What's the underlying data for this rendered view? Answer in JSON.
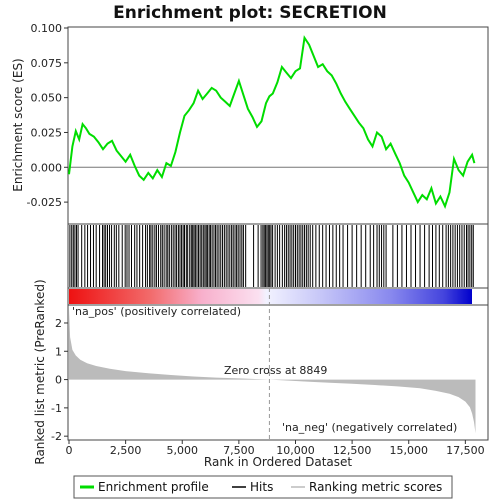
{
  "chart_data": {
    "type": "line",
    "title": "Enrichment plot: SECRETION",
    "xlabel": "Rank in Ordered Dataset",
    "ylabel_top": "Enrichment score (ES)",
    "ylabel_bottom": "Ranked list metric (PreRanked)",
    "xlim": [
      0,
      18500
    ],
    "ylim_es": [
      -0.04,
      0.1
    ],
    "ylim_metric": [
      -2.1,
      2.6
    ],
    "x_ticks": [
      0,
      2500,
      5000,
      7500,
      10000,
      12500,
      15000,
      17500
    ],
    "x_tick_labels": [
      "0",
      "2,500",
      "5,000",
      "7,500",
      "10,000",
      "12,500",
      "15,000",
      "17,500"
    ],
    "es_ticks": [
      -0.025,
      0,
      0.025,
      0.05,
      0.075,
      0.1
    ],
    "es_tick_labels": [
      "-0.025",
      "0.000",
      "0.025",
      "0.050",
      "0.075",
      "0.100"
    ],
    "metric_ticks": [
      -2,
      -1,
      0,
      1,
      2
    ],
    "metric_tick_labels": [
      "-2",
      "-1",
      "0",
      "1",
      "2"
    ],
    "es_profile": {
      "name": "Enrichment profile",
      "color": "#00dd00",
      "x": [
        0,
        150,
        300,
        450,
        600,
        750,
        900,
        1100,
        1300,
        1500,
        1700,
        1900,
        2100,
        2300,
        2500,
        2700,
        2900,
        3100,
        3300,
        3500,
        3700,
        3900,
        4100,
        4300,
        4500,
        4700,
        4900,
        5100,
        5300,
        5500,
        5700,
        5900,
        6100,
        6300,
        6500,
        6700,
        6900,
        7100,
        7300,
        7500,
        7700,
        7900,
        8100,
        8300,
        8500,
        8700,
        8849,
        9000,
        9200,
        9400,
        9600,
        9800,
        10000,
        10200,
        10400,
        10600,
        10800,
        11000,
        11200,
        11400,
        11600,
        11800,
        12000,
        12200,
        12400,
        12600,
        12800,
        13000,
        13200,
        13400,
        13600,
        13800,
        14000,
        14200,
        14400,
        14600,
        14800,
        15000,
        15200,
        15400,
        15600,
        15800,
        16000,
        16200,
        16400,
        16600,
        16800,
        17000,
        17200,
        17400,
        17600,
        17800,
        17900
      ],
      "y": [
        -0.005,
        0.015,
        0.026,
        0.02,
        0.031,
        0.028,
        0.024,
        0.022,
        0.018,
        0.013,
        0.017,
        0.019,
        0.012,
        0.008,
        0.004,
        0.009,
        0.001,
        -0.006,
        -0.009,
        -0.004,
        -0.008,
        -0.002,
        -0.007,
        0.003,
        0.001,
        0.011,
        0.025,
        0.037,
        0.041,
        0.046,
        0.055,
        0.049,
        0.053,
        0.057,
        0.055,
        0.05,
        0.047,
        0.044,
        0.053,
        0.062,
        0.052,
        0.042,
        0.036,
        0.029,
        0.033,
        0.046,
        0.051,
        0.053,
        0.061,
        0.072,
        0.068,
        0.064,
        0.069,
        0.071,
        0.093,
        0.088,
        0.08,
        0.072,
        0.074,
        0.069,
        0.066,
        0.06,
        0.053,
        0.047,
        0.042,
        0.037,
        0.032,
        0.028,
        0.02,
        0.015,
        0.025,
        0.022,
        0.013,
        0.017,
        0.01,
        0.003,
        -0.006,
        -0.011,
        -0.018,
        -0.025,
        -0.02,
        -0.023,
        -0.015,
        -0.026,
        -0.021,
        -0.028,
        -0.018,
        0.006,
        -0.002,
        -0.006,
        0.004,
        0.009,
        0.003
      ]
    },
    "hits": [
      40,
      120,
      190,
      260,
      330,
      400,
      560,
      700,
      820,
      950,
      1080,
      1200,
      1350,
      1480,
      1550,
      1620,
      1700,
      1790,
      1880,
      2000,
      2090,
      2200,
      2350,
      2480,
      2560,
      2650,
      2760,
      2900,
      3000,
      3120,
      3250,
      3380,
      3460,
      3560,
      3620,
      3700,
      3790,
      3860,
      3950,
      4050,
      4120,
      4200,
      4290,
      4360,
      4430,
      4520,
      4600,
      4680,
      4750,
      4830,
      4900,
      4970,
      5040,
      5100,
      5180,
      5240,
      5330,
      5400,
      5460,
      5520,
      5580,
      5650,
      5720,
      5790,
      5860,
      5930,
      6000,
      6060,
      6120,
      6190,
      6250,
      6320,
      6400,
      6470,
      6540,
      6620,
      6700,
      6780,
      6860,
      6940,
      7020,
      7100,
      7180,
      7250,
      7330,
      7400,
      7470,
      7550,
      7630,
      7700,
      7800,
      8150,
      8350,
      8480,
      8560,
      8620,
      8680,
      8740,
      8800,
      8860,
      8920,
      8990,
      9100,
      9200,
      9300,
      9420,
      9520,
      9600,
      9680,
      9760,
      9840,
      9920,
      10000,
      10080,
      10160,
      10240,
      10320,
      10400,
      10480,
      10560,
      10650,
      10760,
      10900,
      11050,
      11200,
      11350,
      11500,
      11650,
      11800,
      11950,
      12100,
      12300,
      12500,
      12700,
      12900,
      13100,
      13300,
      13450,
      13600,
      13700,
      13800,
      13900,
      14000,
      14300,
      14500,
      14700,
      14900,
      15100,
      15300,
      15500,
      15700,
      15900,
      16050,
      16200,
      16350,
      16500,
      16650,
      16750,
      16850,
      16950,
      17050,
      17150,
      17250,
      17350,
      17450,
      17550,
      17620,
      17700,
      17780,
      17850
    ],
    "metric_curve": {
      "x": [
        0,
        50,
        150,
        300,
        500,
        800,
        1200,
        1800,
        2500,
        3500,
        4500,
        5500,
        6500,
        7500,
        8500,
        8849,
        9500,
        10500,
        11500,
        12500,
        13500,
        14500,
        15500,
        16200,
        16800,
        17200,
        17500,
        17700,
        17800,
        17880,
        17950
      ],
      "y": [
        2.5,
        1.5,
        1.05,
        0.85,
        0.7,
        0.58,
        0.48,
        0.38,
        0.3,
        0.22,
        0.16,
        0.11,
        0.07,
        0.04,
        0.01,
        0.0,
        -0.03,
        -0.07,
        -0.11,
        -0.15,
        -0.19,
        -0.24,
        -0.31,
        -0.4,
        -0.5,
        -0.62,
        -0.78,
        -0.98,
        -1.2,
        -1.5,
        -1.9
      ]
    },
    "zero_cross": 8849,
    "annotations": {
      "pos_label": "'na_pos' (positively correlated)",
      "neg_label": "'na_neg' (negatively correlated)",
      "zero_cross_label": "Zero cross at 8849"
    },
    "legend": {
      "placement": "bottom",
      "items": [
        "Enrichment profile",
        "Hits",
        "Ranking metric scores"
      ]
    },
    "colors": {
      "es_line": "#00dd00",
      "hits": "#000000",
      "metric_fill": "#bbbbbb",
      "pos_text": "#cc0000",
      "neg_text": "#0000cc",
      "bar_red": "#ee0000",
      "bar_blue": "#0000ee"
    }
  }
}
